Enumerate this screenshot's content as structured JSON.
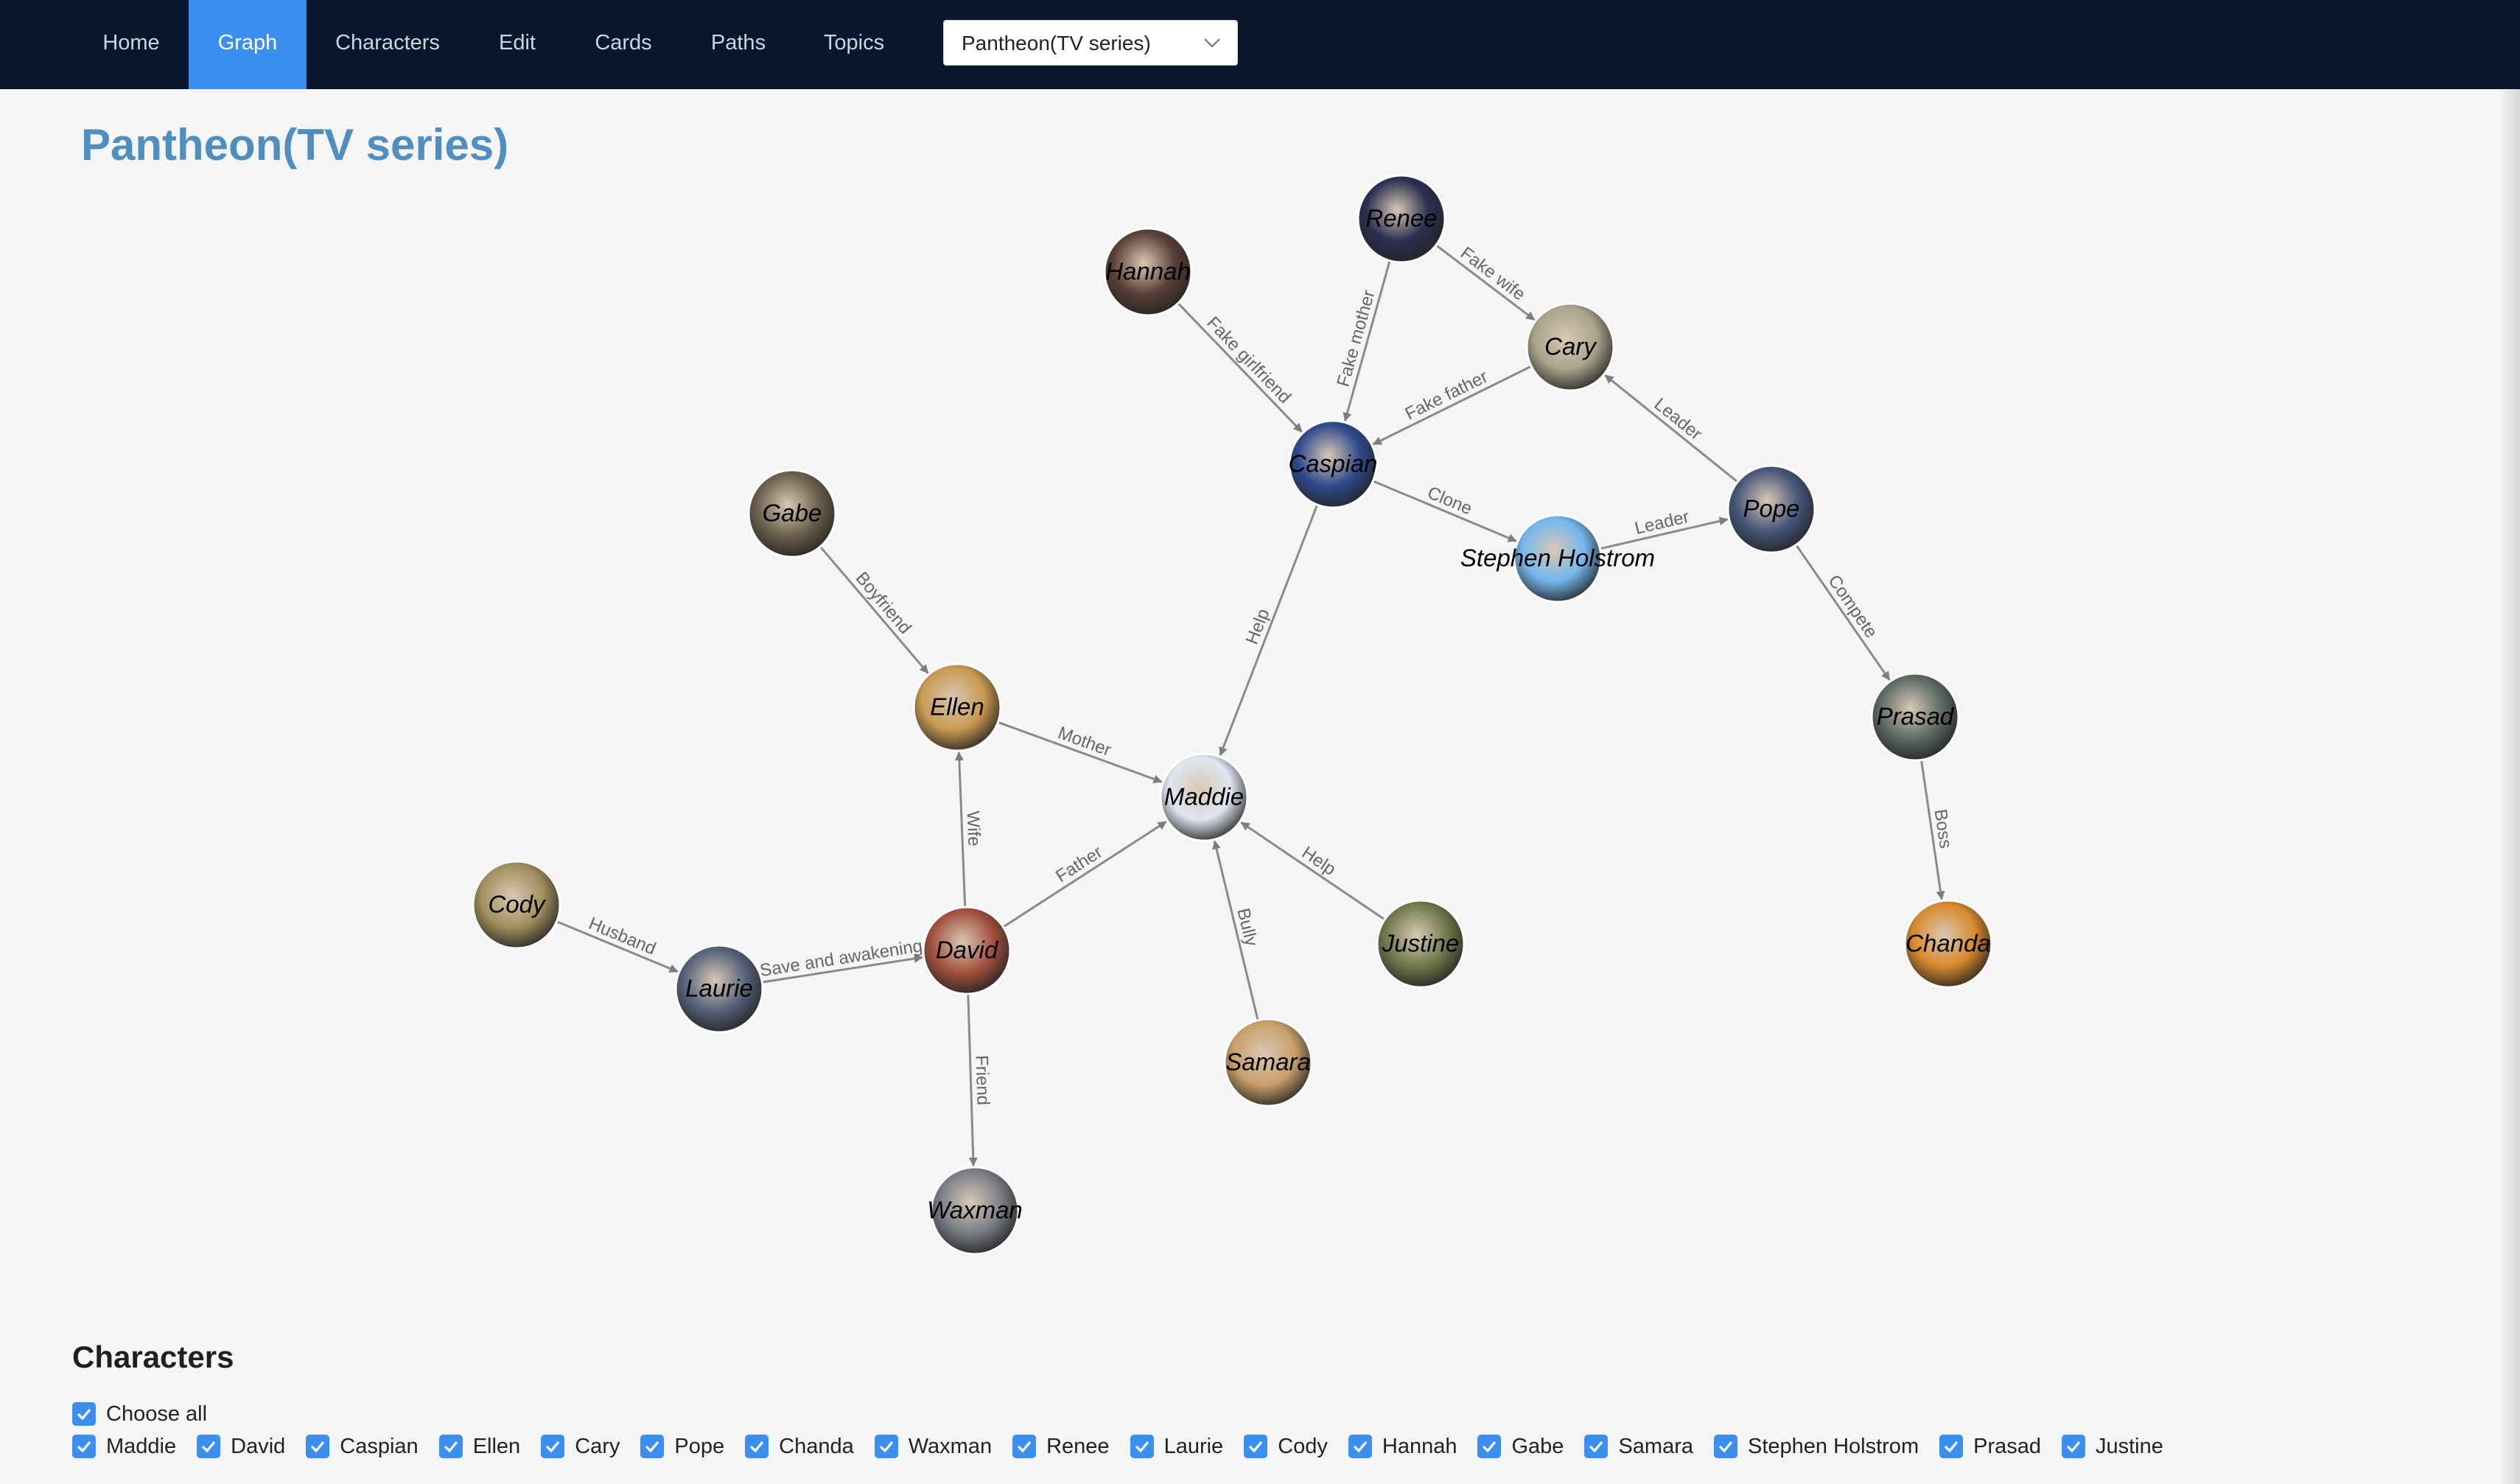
{
  "nav": {
    "items": [
      {
        "label": "Home",
        "active": false
      },
      {
        "label": "Graph",
        "active": true
      },
      {
        "label": "Characters",
        "active": false
      },
      {
        "label": "Edit",
        "active": false
      },
      {
        "label": "Cards",
        "active": false
      },
      {
        "label": "Paths",
        "active": false
      },
      {
        "label": "Topics",
        "active": false
      }
    ],
    "book_select": {
      "value": "Pantheon(TV series)",
      "icon": "chevron-down-icon"
    }
  },
  "page": {
    "title": "Pantheon(TV series)"
  },
  "graph": {
    "nodes": [
      {
        "id": "Renee",
        "label": "Renee",
        "color": "#2b2f52"
      },
      {
        "id": "Hannah",
        "label": "Hannah",
        "color": "#5a3f36"
      },
      {
        "id": "Cary",
        "label": "Cary",
        "color": "#a9a48a"
      },
      {
        "id": "Caspian",
        "label": "Caspian",
        "color": "#2f4a8c"
      },
      {
        "id": "Pope",
        "label": "Pope",
        "color": "#46577a"
      },
      {
        "id": "Stephen Holstrom",
        "label": "Stephen Holstrom",
        "color": "#74b7ee"
      },
      {
        "id": "Gabe",
        "label": "Gabe",
        "color": "#6b604c"
      },
      {
        "id": "Ellen",
        "label": "Ellen",
        "color": "#c99a52"
      },
      {
        "id": "Prasad",
        "label": "Prasad",
        "color": "#5c6a64"
      },
      {
        "id": "Maddie",
        "label": "Maddie",
        "color": "#dfe6f2"
      },
      {
        "id": "Cody",
        "label": "Cody",
        "color": "#a38f5e"
      },
      {
        "id": "David",
        "label": "David",
        "color": "#a2513d"
      },
      {
        "id": "Justine",
        "label": "Justine",
        "color": "#6f7a4a"
      },
      {
        "id": "Chanda",
        "label": "Chanda",
        "color": "#d98a2c"
      },
      {
        "id": "Laurie",
        "label": "Laurie",
        "color": "#55627a"
      },
      {
        "id": "Samara",
        "label": "Samara",
        "color": "#c9a06a"
      },
      {
        "id": "Waxman",
        "label": "Waxman",
        "color": "#7a7d86"
      }
    ],
    "edges": [
      {
        "source": "Renee",
        "target": "Cary",
        "label": "Fake wife"
      },
      {
        "source": "Renee",
        "target": "Caspian",
        "label": "Fake mother"
      },
      {
        "source": "Hannah",
        "target": "Caspian",
        "label": "Fake girlfriend"
      },
      {
        "source": "Cary",
        "target": "Caspian",
        "label": "Fake father"
      },
      {
        "source": "Pope",
        "target": "Cary",
        "label": "Leader"
      },
      {
        "source": "Caspian",
        "target": "Stephen Holstrom",
        "label": "Clone"
      },
      {
        "source": "Stephen Holstrom",
        "target": "Pope",
        "label": "Leader"
      },
      {
        "source": "Pope",
        "target": "Prasad",
        "label": "Compete"
      },
      {
        "source": "Prasad",
        "target": "Chanda",
        "label": "Boss"
      },
      {
        "source": "Caspian",
        "target": "Maddie",
        "label": "Help"
      },
      {
        "source": "Gabe",
        "target": "Ellen",
        "label": "Boyfriend"
      },
      {
        "source": "Ellen",
        "target": "Maddie",
        "label": "Mother"
      },
      {
        "source": "David",
        "target": "Ellen",
        "label": "Wife"
      },
      {
        "source": "David",
        "target": "Maddie",
        "label": "Father"
      },
      {
        "source": "Justine",
        "target": "Maddie",
        "label": "Help"
      },
      {
        "source": "Samara",
        "target": "Maddie",
        "label": "Bully"
      },
      {
        "source": "Cody",
        "target": "Laurie",
        "label": "Husband"
      },
      {
        "source": "Laurie",
        "target": "David",
        "label": "Save and awakening"
      },
      {
        "source": "David",
        "target": "Waxman",
        "label": "Friend"
      }
    ]
  },
  "characters": {
    "heading": "Characters",
    "choose_all": {
      "label": "Choose all",
      "checked": true
    },
    "items": [
      {
        "label": "Maddie",
        "checked": true
      },
      {
        "label": "David",
        "checked": true
      },
      {
        "label": "Caspian",
        "checked": true
      },
      {
        "label": "Ellen",
        "checked": true
      },
      {
        "label": "Cary",
        "checked": true
      },
      {
        "label": "Pope",
        "checked": true
      },
      {
        "label": "Chanda",
        "checked": true
      },
      {
        "label": "Waxman",
        "checked": true
      },
      {
        "label": "Renee",
        "checked": true
      },
      {
        "label": "Laurie",
        "checked": true
      },
      {
        "label": "Cody",
        "checked": true
      },
      {
        "label": "Hannah",
        "checked": true
      },
      {
        "label": "Gabe",
        "checked": true
      },
      {
        "label": "Samara",
        "checked": true
      },
      {
        "label": "Stephen Holstrom",
        "checked": true
      },
      {
        "label": "Prasad",
        "checked": true
      },
      {
        "label": "Justine",
        "checked": true
      }
    ]
  }
}
